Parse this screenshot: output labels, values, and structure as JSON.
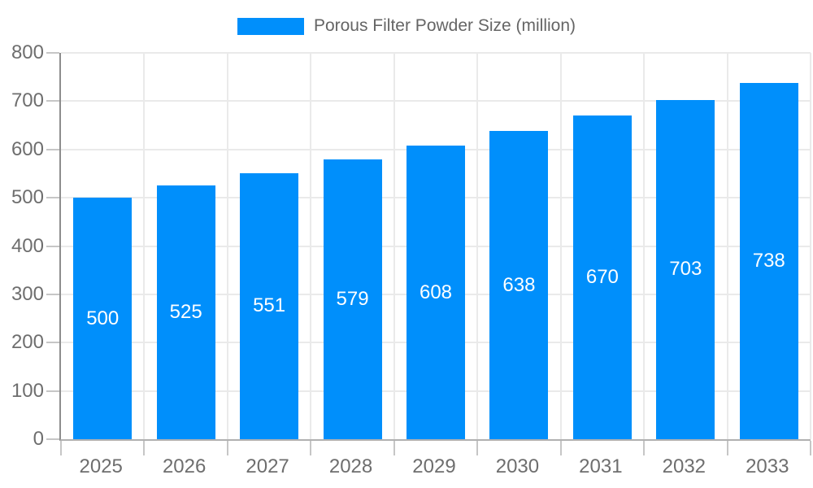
{
  "legend": {
    "label": "Porous Filter Powder Size (million)"
  },
  "chart_data": {
    "type": "bar",
    "title": "Porous Filter Powder Size (million)",
    "series": [
      {
        "name": "Porous Filter Powder Size (million)",
        "values": [
          500,
          525,
          551,
          579,
          608,
          638,
          670,
          703,
          738
        ]
      }
    ],
    "categories": [
      "2025",
      "2026",
      "2027",
      "2028",
      "2029",
      "2030",
      "2031",
      "2032",
      "2033"
    ],
    "xlabel": "",
    "ylabel": "",
    "ylim": [
      0,
      800
    ],
    "yticks": [
      0,
      100,
      200,
      300,
      400,
      500,
      600,
      700,
      800
    ],
    "grid": true,
    "legend_position": "top-center",
    "data_labels": "white, centered inside bars",
    "colors": {
      "bar": "#008FFB",
      "grid": "#eaeaea",
      "axis_text": "#6e6e6e",
      "legend_text": "#656565",
      "data_label_text": "#ffffff",
      "y_axis_line": "#8d8d8d",
      "x_axis_line": "#b1b1b1",
      "tick": "#c6c6c6",
      "background": "#ffffff"
    }
  }
}
